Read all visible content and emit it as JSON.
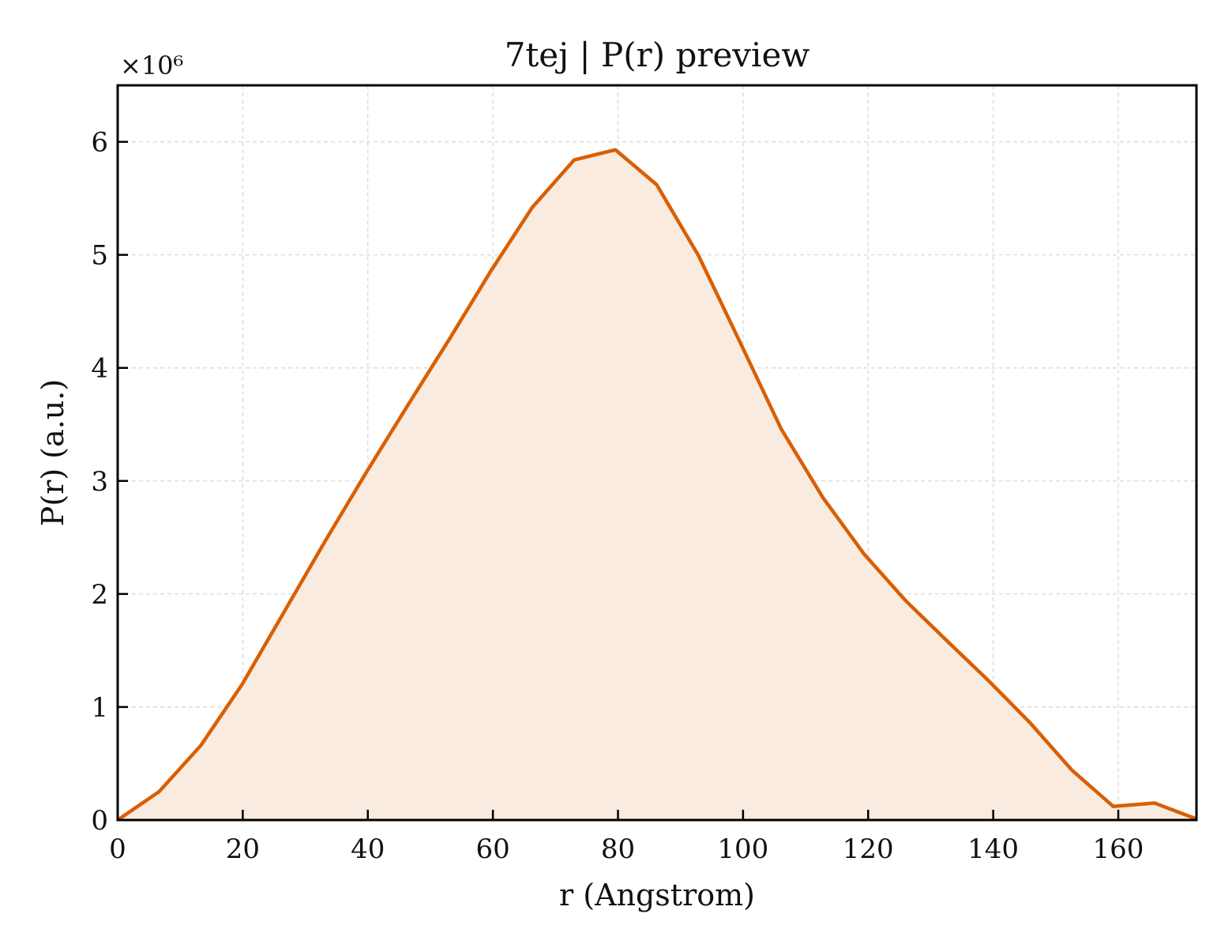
{
  "chart_data": {
    "type": "area",
    "title": "7tej | P(r) preview",
    "xlabel": "r (Angstrom)",
    "ylabel": "P(r) (a.u.)",
    "y_multiplier_label": "×10⁶",
    "xlim": [
      0,
      172.5
    ],
    "ylim": [
      0,
      6.5
    ],
    "y_scale": 1000000,
    "xticks": [
      0,
      20,
      40,
      60,
      80,
      100,
      120,
      140,
      160
    ],
    "yticks": [
      0,
      1,
      2,
      3,
      4,
      5,
      6
    ],
    "grid": true,
    "legend": "none",
    "line_color": "#d95f02",
    "fill_color": "#f9ebe0",
    "series": [
      {
        "x": [
          0,
          6.6,
          13.3,
          19.9,
          26.5,
          33.2,
          39.8,
          46.4,
          53.1,
          59.7,
          66.3,
          73.0,
          79.6,
          86.2,
          92.9,
          99.5,
          106.1,
          112.8,
          119.4,
          126.0,
          132.7,
          139.3,
          145.9,
          152.6,
          159.2,
          165.8,
          172.5
        ],
        "values": [
          0,
          0.25,
          0.66,
          1.2,
          1.83,
          2.47,
          3.08,
          3.67,
          4.26,
          4.86,
          5.42,
          5.84,
          5.93,
          5.62,
          4.99,
          4.23,
          3.46,
          2.85,
          2.35,
          1.94,
          1.58,
          1.23,
          0.86,
          0.44,
          0.12,
          0.15,
          0.01
        ]
      }
    ]
  }
}
